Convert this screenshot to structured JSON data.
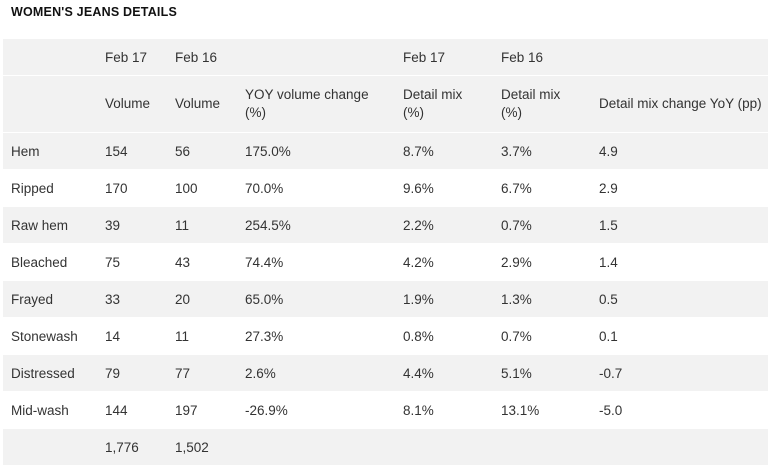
{
  "title": "WOMEN'S JEANS DETAILS",
  "header_row1": [
    "",
    "Feb 17",
    "Feb 16",
    "",
    "Feb 17",
    "Feb 16",
    ""
  ],
  "header_row2": [
    "",
    "Volume",
    "Volume",
    "YOY volume change (%)",
    "Detail mix (%)",
    "Detail mix (%)",
    "Detail mix change YoY (pp)"
  ],
  "rows": [
    [
      "Hem",
      "154",
      "56",
      "175.0%",
      "8.7%",
      "3.7%",
      "4.9"
    ],
    [
      "Ripped",
      "170",
      "100",
      "70.0%",
      "9.6%",
      "6.7%",
      "2.9"
    ],
    [
      "Raw hem",
      "39",
      "11",
      "254.5%",
      "2.2%",
      "0.7%",
      "1.5"
    ],
    [
      "Bleached",
      "75",
      "43",
      "74.4%",
      "4.2%",
      "2.9%",
      "1.4"
    ],
    [
      "Frayed",
      "33",
      "20",
      "65.0%",
      "1.9%",
      "1.3%",
      "0.5"
    ],
    [
      "Stonewash",
      "14",
      "11",
      "27.3%",
      "0.8%",
      "0.7%",
      "0.1"
    ],
    [
      "Distressed",
      "79",
      "77",
      "2.6%",
      "4.4%",
      "5.1%",
      "-0.7"
    ],
    [
      "Mid-wash",
      "144",
      "197",
      "-26.9%",
      "8.1%",
      "13.1%",
      "-5.0"
    ]
  ],
  "totals": [
    "",
    "1,776",
    "1,502",
    "",
    "",
    "",
    ""
  ]
}
